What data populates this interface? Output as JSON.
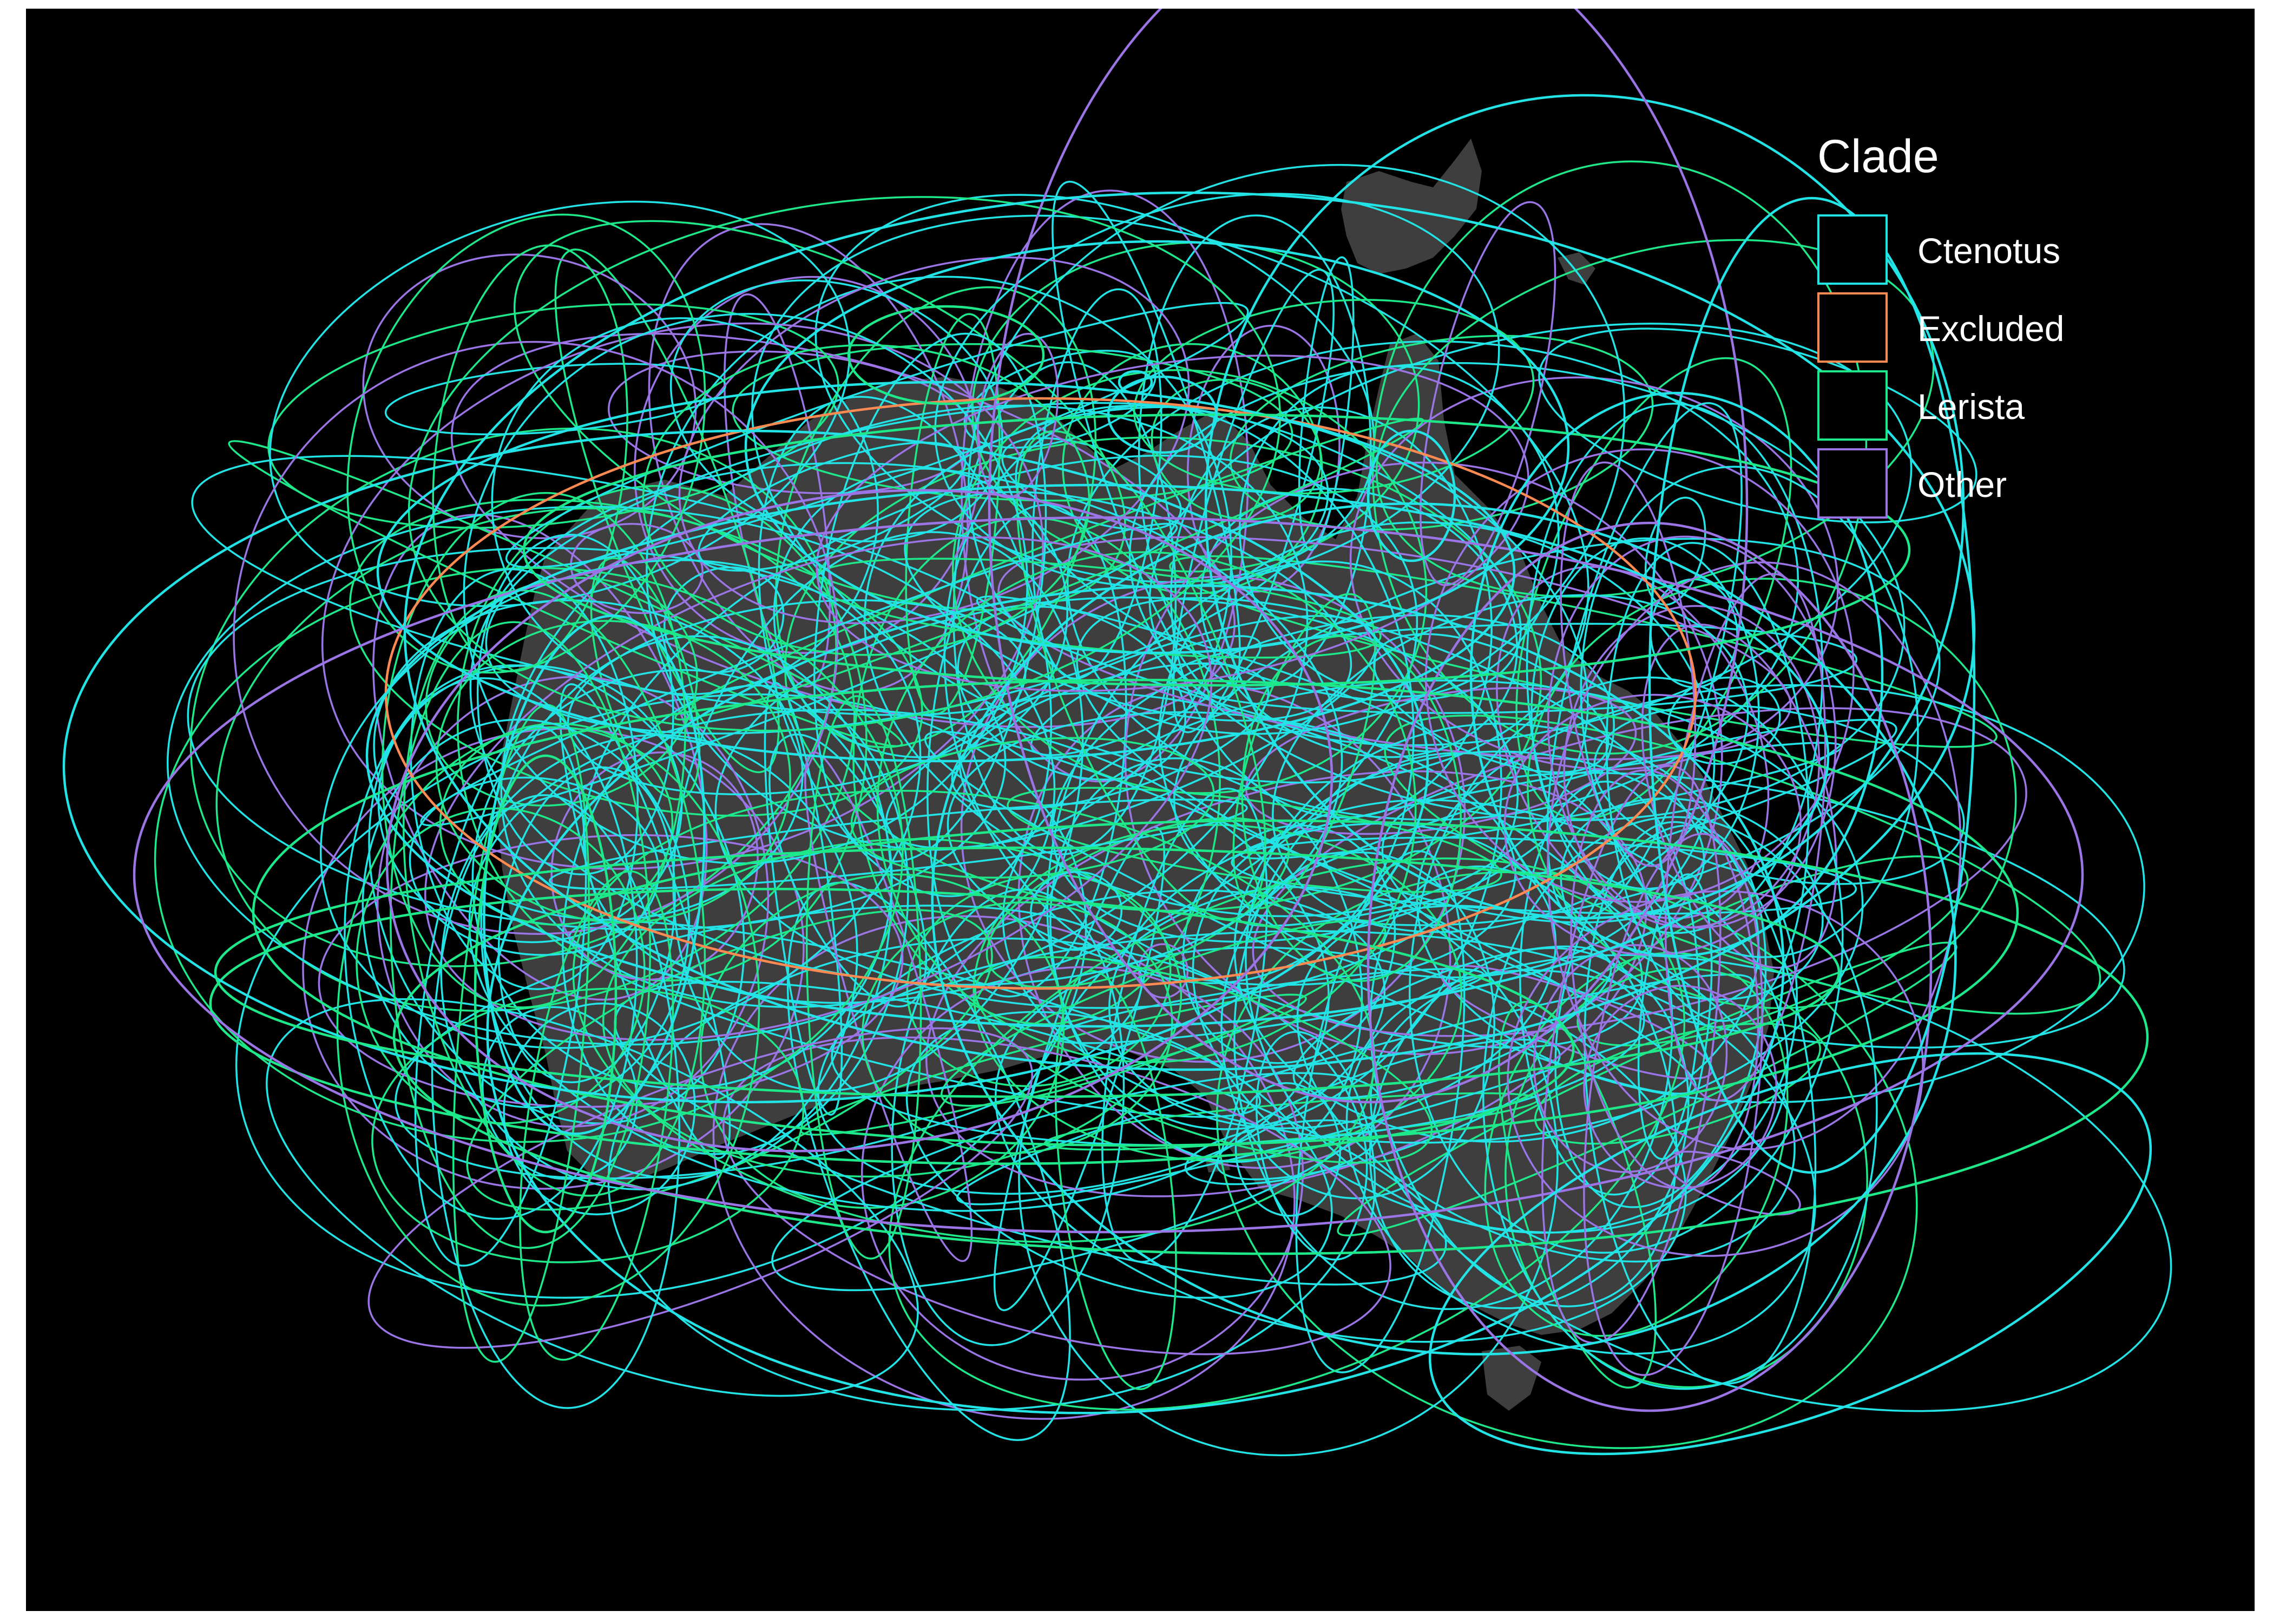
{
  "map": {
    "background_color": "#000000",
    "landmass_color": "#3e3e3e",
    "landmasses": [
      "Australia",
      "New Guinea",
      "Tasmania"
    ],
    "layer": "species range ellipses",
    "stroke_colors_by_clade": {
      "Ctenotus": "#22e4e6",
      "Excluded": "#ff8b52",
      "Lerista": "#1de98b",
      "Other": "#9b74e6"
    }
  },
  "legend": {
    "title": "Clade",
    "items": [
      {
        "label": "Ctenotus",
        "color": "#22e4e6"
      },
      {
        "label": "Excluded",
        "color": "#ff8b52"
      },
      {
        "label": "Lerista",
        "color": "#1de98b"
      },
      {
        "label": "Other",
        "color": "#9b74e6"
      }
    ]
  }
}
